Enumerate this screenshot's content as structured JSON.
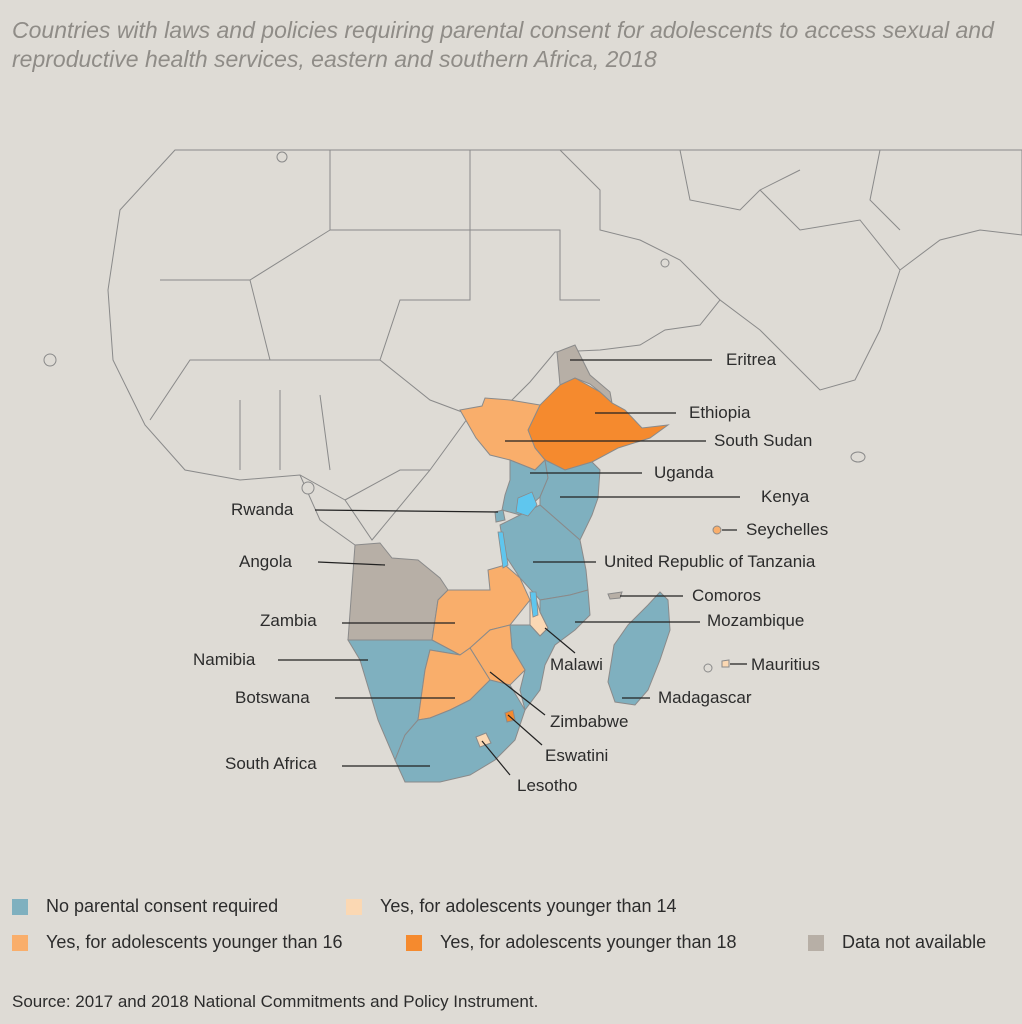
{
  "title": "Countries with laws and policies requiring parental consent for adolescents to access sexual and reproductive health services, eastern and southern Africa, 2018",
  "source": "Source: 2017 and 2018 National Commitments and Policy Instrument.",
  "colors": {
    "background": "#dedbd5",
    "border": "#8a8a8a",
    "no_consent": "#7fb0bf",
    "younger_14": "#fbd8b3",
    "younger_16": "#f9ae6b",
    "younger_18": "#f58a2e",
    "not_available": "#b7afa6",
    "lake": "#5fc6ee"
  },
  "legend": [
    {
      "key": "no_consent",
      "label": "No parental consent required"
    },
    {
      "key": "younger_14",
      "label": "Yes, for adolescents younger than 14"
    },
    {
      "key": "younger_16",
      "label": "Yes, for adolescents younger than 16"
    },
    {
      "key": "younger_18",
      "label": "Yes, for adolescents younger than 18"
    },
    {
      "key": "not_available",
      "label": "Data not available"
    }
  ],
  "countries": [
    {
      "name": "Eritrea",
      "category": "not_available"
    },
    {
      "name": "Ethiopia",
      "category": "younger_18"
    },
    {
      "name": "South Sudan",
      "category": "younger_16"
    },
    {
      "name": "Uganda",
      "category": "no_consent"
    },
    {
      "name": "Kenya",
      "category": "no_consent"
    },
    {
      "name": "Rwanda",
      "category": "no_consent"
    },
    {
      "name": "Seychelles",
      "category": "younger_16"
    },
    {
      "name": "Angola",
      "category": "not_available"
    },
    {
      "name": "United Republic of Tanzania",
      "category": "no_consent"
    },
    {
      "name": "Comoros",
      "category": "not_available"
    },
    {
      "name": "Zambia",
      "category": "younger_16"
    },
    {
      "name": "Mozambique",
      "category": "no_consent"
    },
    {
      "name": "Namibia",
      "category": "no_consent"
    },
    {
      "name": "Malawi",
      "category": "younger_14"
    },
    {
      "name": "Mauritius",
      "category": "younger_14"
    },
    {
      "name": "Botswana",
      "category": "younger_16"
    },
    {
      "name": "Madagascar",
      "category": "no_consent"
    },
    {
      "name": "Zimbabwe",
      "category": "younger_16"
    },
    {
      "name": "Eswatini",
      "category": "younger_18"
    },
    {
      "name": "South Africa",
      "category": "no_consent"
    },
    {
      "name": "Lesotho",
      "category": "younger_14"
    }
  ]
}
